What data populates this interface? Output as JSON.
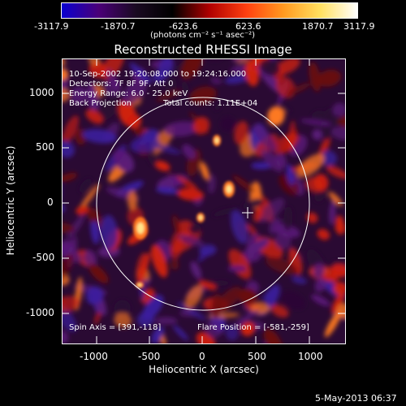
{
  "colorbar": {
    "ticks": [
      "-3117.9",
      "-1870.7",
      "-623.6",
      "623.6",
      "1870.7",
      "3117.9"
    ],
    "unit_label": "(photons cm⁻² s⁻¹ asec⁻²)",
    "colors": [
      "#0a00d0",
      "#4a0078",
      "#1a0a22",
      "#000000",
      "#b00000",
      "#ff4010",
      "#ff9a20",
      "#ffe060",
      "#ffffff"
    ]
  },
  "title": "Reconstructed RHESSI Image",
  "info": {
    "time_range": "10-Sep-2002 19:20:08.000 to 19:24:16.000",
    "detectors": "Detectors: 7F 8F 9F, Att 0",
    "energy": "Energy Range: 6.0 - 25.0 keV",
    "method": "Back Projection",
    "total_counts": "Total counts: 1.11E+04",
    "spin_axis": "Spin Axis = [391,-118]",
    "flare_position": "Flare Position = [-581,-259]"
  },
  "axes": {
    "xlabel": "Heliocentric X (arcsec)",
    "ylabel": "Heliocentric Y (arcsec)",
    "xticks": [
      "-1000",
      "-500",
      "0",
      "500",
      "1000"
    ],
    "yticks": [
      "1000",
      "500",
      "0",
      "-500",
      "-1000"
    ]
  },
  "footer_date": "5-May-2013 06:37",
  "image_colors": {
    "dark_purple": "#2a0a33",
    "purple": "#5a1a78",
    "blue_purple": "#3b1fa0",
    "dark_red": "#6a0a0a",
    "red": "#d02010",
    "orange": "#ff7a20",
    "bright": "#ffe48a"
  }
}
